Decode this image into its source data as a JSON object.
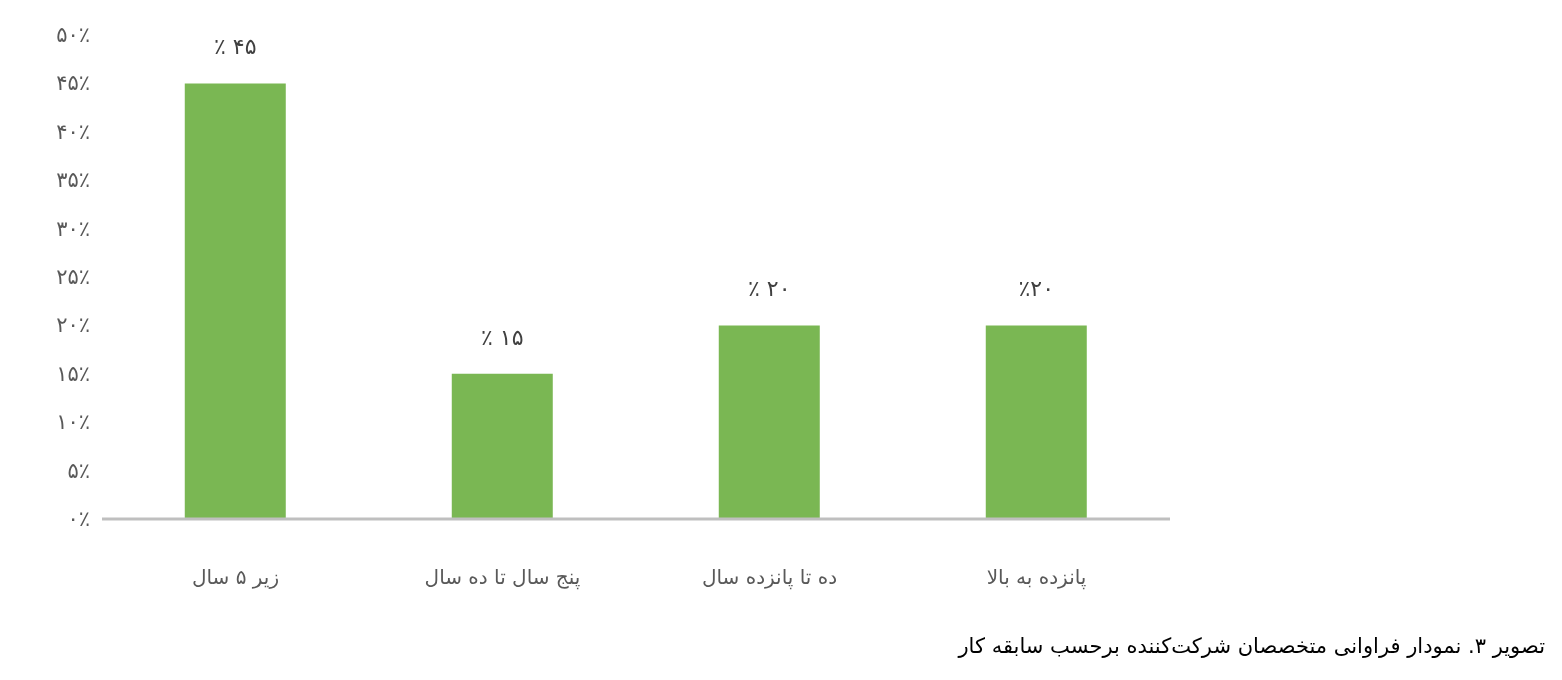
{
  "chart_data": {
    "type": "bar",
    "categories": [
      "زیر ۵ سال",
      "پنج سال تا ده سال",
      "ده تا پانزده سال",
      "پانزده به بالا"
    ],
    "values": [
      45,
      15,
      20,
      20
    ],
    "value_labels": [
      "٪ ۴۵",
      "٪ ۱۵",
      "٪ ۲۰",
      "٪۲۰"
    ],
    "color": "#7ab753",
    "ylim": [
      0,
      50
    ],
    "yticks": [
      {
        "value": 0,
        "label": "۰٪"
      },
      {
        "value": 5,
        "label": "۵٪"
      },
      {
        "value": 10,
        "label": "۱۰٪"
      },
      {
        "value": 15,
        "label": "۱۵٪"
      },
      {
        "value": 20,
        "label": "۲۰٪"
      },
      {
        "value": 25,
        "label": "۲۵٪"
      },
      {
        "value": 30,
        "label": "۳۰٪"
      },
      {
        "value": 35,
        "label": "۳۵٪"
      },
      {
        "value": 40,
        "label": "۴۰٪"
      },
      {
        "value": 45,
        "label": "۴۵٪"
      },
      {
        "value": 50,
        "label": "۵۰٪"
      }
    ],
    "annotations": [
      "تصویر ۳. نمودار فراوانی متخصصان شرکت‌کننده برحسب سابقه کار"
    ]
  }
}
